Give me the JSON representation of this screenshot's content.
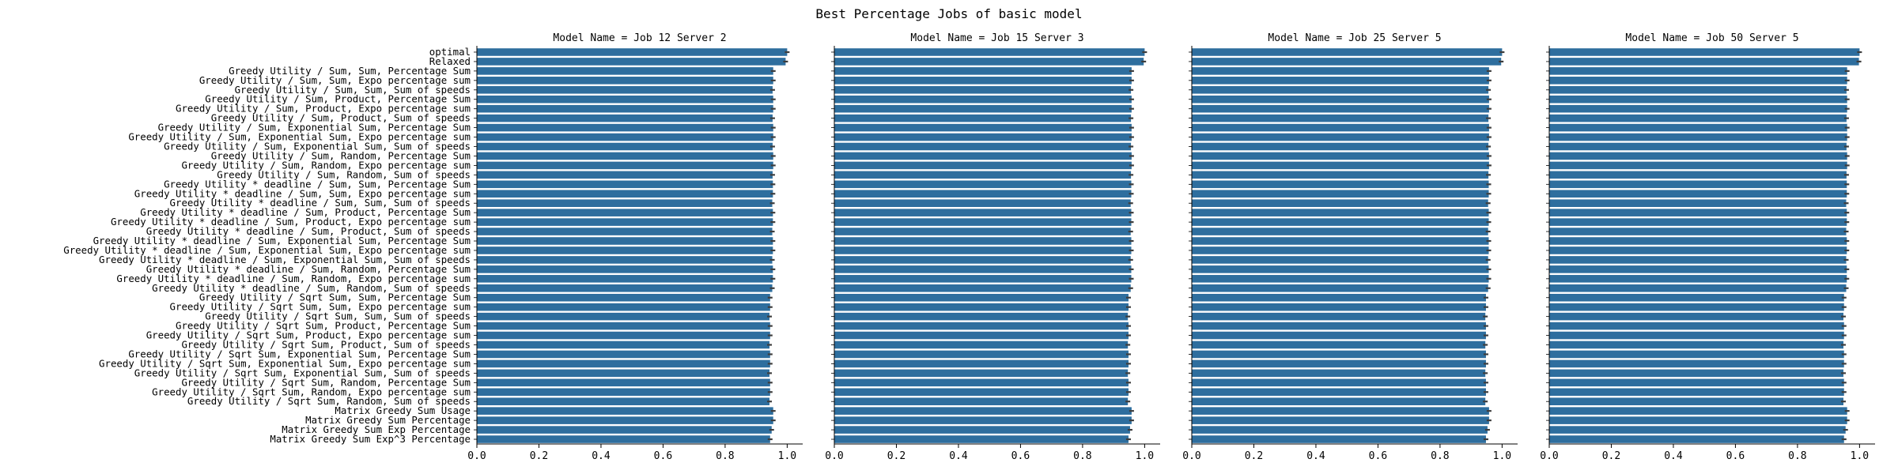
{
  "chart_data": {
    "type": "bar",
    "orientation": "horizontal",
    "title": "Best Percentage Jobs of basic model",
    "bar_color": "#2e6e9e",
    "error_bars": true,
    "xlim": [
      0.0,
      1.05
    ],
    "xticks": [
      "0.0",
      "0.2",
      "0.4",
      "0.6",
      "0.8",
      "1.0"
    ],
    "sharey": true,
    "grid": false,
    "categories": [
      "optimal",
      "Relaxed",
      "Greedy Utility / Sum, Sum, Percentage Sum",
      "Greedy Utility / Sum, Sum, Expo percentage sum",
      "Greedy Utility / Sum, Sum, Sum of speeds",
      "Greedy Utility / Sum, Product, Percentage Sum",
      "Greedy Utility / Sum, Product, Expo percentage sum",
      "Greedy Utility / Sum, Product, Sum of speeds",
      "Greedy Utility / Sum, Exponential Sum, Percentage Sum",
      "Greedy Utility / Sum, Exponential Sum, Expo percentage sum",
      "Greedy Utility / Sum, Exponential Sum, Sum of speeds",
      "Greedy Utility / Sum, Random, Percentage Sum",
      "Greedy Utility / Sum, Random, Expo percentage sum",
      "Greedy Utility / Sum, Random, Sum of speeds",
      "Greedy Utility * deadline / Sum, Sum, Percentage Sum",
      "Greedy Utility * deadline / Sum, Sum, Expo percentage sum",
      "Greedy Utility * deadline / Sum, Sum, Sum of speeds",
      "Greedy Utility * deadline / Sum, Product, Percentage Sum",
      "Greedy Utility * deadline / Sum, Product, Expo percentage sum",
      "Greedy Utility * deadline / Sum, Product, Sum of speeds",
      "Greedy Utility * deadline / Sum, Exponential Sum, Percentage Sum",
      "Greedy Utility * deadline / Sum, Exponential Sum, Expo percentage sum",
      "Greedy Utility * deadline / Sum, Exponential Sum, Sum of speeds",
      "Greedy Utility * deadline / Sum, Random, Percentage Sum",
      "Greedy Utility * deadline / Sum, Random, Expo percentage sum",
      "Greedy Utility * deadline / Sum, Random, Sum of speeds",
      "Greedy Utility / Sqrt Sum, Sum, Percentage Sum",
      "Greedy Utility / Sqrt Sum, Sum, Expo percentage sum",
      "Greedy Utility / Sqrt Sum, Sum, Sum of speeds",
      "Greedy Utility / Sqrt Sum, Product, Percentage Sum",
      "Greedy Utility / Sqrt Sum, Product, Expo percentage sum",
      "Greedy Utility / Sqrt Sum, Product, Sum of speeds",
      "Greedy Utility / Sqrt Sum, Exponential Sum, Percentage Sum",
      "Greedy Utility / Sqrt Sum, Exponential Sum, Expo percentage sum",
      "Greedy Utility / Sqrt Sum, Exponential Sum, Sum of speeds",
      "Greedy Utility / Sqrt Sum, Random, Percentage Sum",
      "Greedy Utility / Sqrt Sum, Random, Expo percentage sum",
      "Greedy Utility / Sqrt Sum, Random, Sum of speeds",
      "Matrix Greedy Sum Usage",
      "Matrix Greedy Sum Percentage",
      "Matrix Greedy Sum Exp Percentage",
      "Matrix Greedy Sum Exp^3 Percentage"
    ],
    "panels": [
      {
        "title": "Model Name =  Job 12 Server 2",
        "values": [
          1.0,
          0.995,
          0.955,
          0.955,
          0.953,
          0.955,
          0.955,
          0.953,
          0.955,
          0.955,
          0.953,
          0.955,
          0.955,
          0.953,
          0.954,
          0.954,
          0.952,
          0.954,
          0.954,
          0.952,
          0.954,
          0.954,
          0.952,
          0.954,
          0.954,
          0.952,
          0.945,
          0.945,
          0.943,
          0.945,
          0.945,
          0.943,
          0.945,
          0.945,
          0.943,
          0.945,
          0.945,
          0.943,
          0.955,
          0.955,
          0.95,
          0.945
        ]
      },
      {
        "title": "Model Name =  Job 15 Server 3",
        "values": [
          1.0,
          0.997,
          0.958,
          0.958,
          0.956,
          0.958,
          0.958,
          0.956,
          0.958,
          0.958,
          0.956,
          0.958,
          0.958,
          0.956,
          0.957,
          0.957,
          0.955,
          0.957,
          0.957,
          0.955,
          0.957,
          0.957,
          0.955,
          0.957,
          0.957,
          0.955,
          0.948,
          0.948,
          0.946,
          0.948,
          0.948,
          0.946,
          0.948,
          0.948,
          0.946,
          0.948,
          0.948,
          0.946,
          0.958,
          0.958,
          0.953,
          0.948
        ]
      },
      {
        "title": "Model Name =  Job 25 Server 5",
        "values": [
          1.0,
          0.997,
          0.958,
          0.958,
          0.956,
          0.958,
          0.958,
          0.956,
          0.958,
          0.958,
          0.956,
          0.958,
          0.958,
          0.956,
          0.957,
          0.957,
          0.955,
          0.957,
          0.957,
          0.955,
          0.957,
          0.957,
          0.955,
          0.957,
          0.957,
          0.955,
          0.948,
          0.948,
          0.946,
          0.948,
          0.948,
          0.946,
          0.948,
          0.948,
          0.946,
          0.948,
          0.948,
          0.946,
          0.958,
          0.958,
          0.953,
          0.948
        ]
      },
      {
        "title": "Model Name =  Job 50 Server 5",
        "values": [
          1.0,
          0.998,
          0.96,
          0.96,
          0.958,
          0.96,
          0.96,
          0.958,
          0.96,
          0.96,
          0.958,
          0.96,
          0.96,
          0.958,
          0.959,
          0.959,
          0.957,
          0.959,
          0.959,
          0.957,
          0.959,
          0.959,
          0.957,
          0.959,
          0.959,
          0.957,
          0.95,
          0.95,
          0.948,
          0.95,
          0.95,
          0.948,
          0.95,
          0.95,
          0.948,
          0.95,
          0.95,
          0.948,
          0.96,
          0.96,
          0.955,
          0.95
        ]
      }
    ]
  }
}
